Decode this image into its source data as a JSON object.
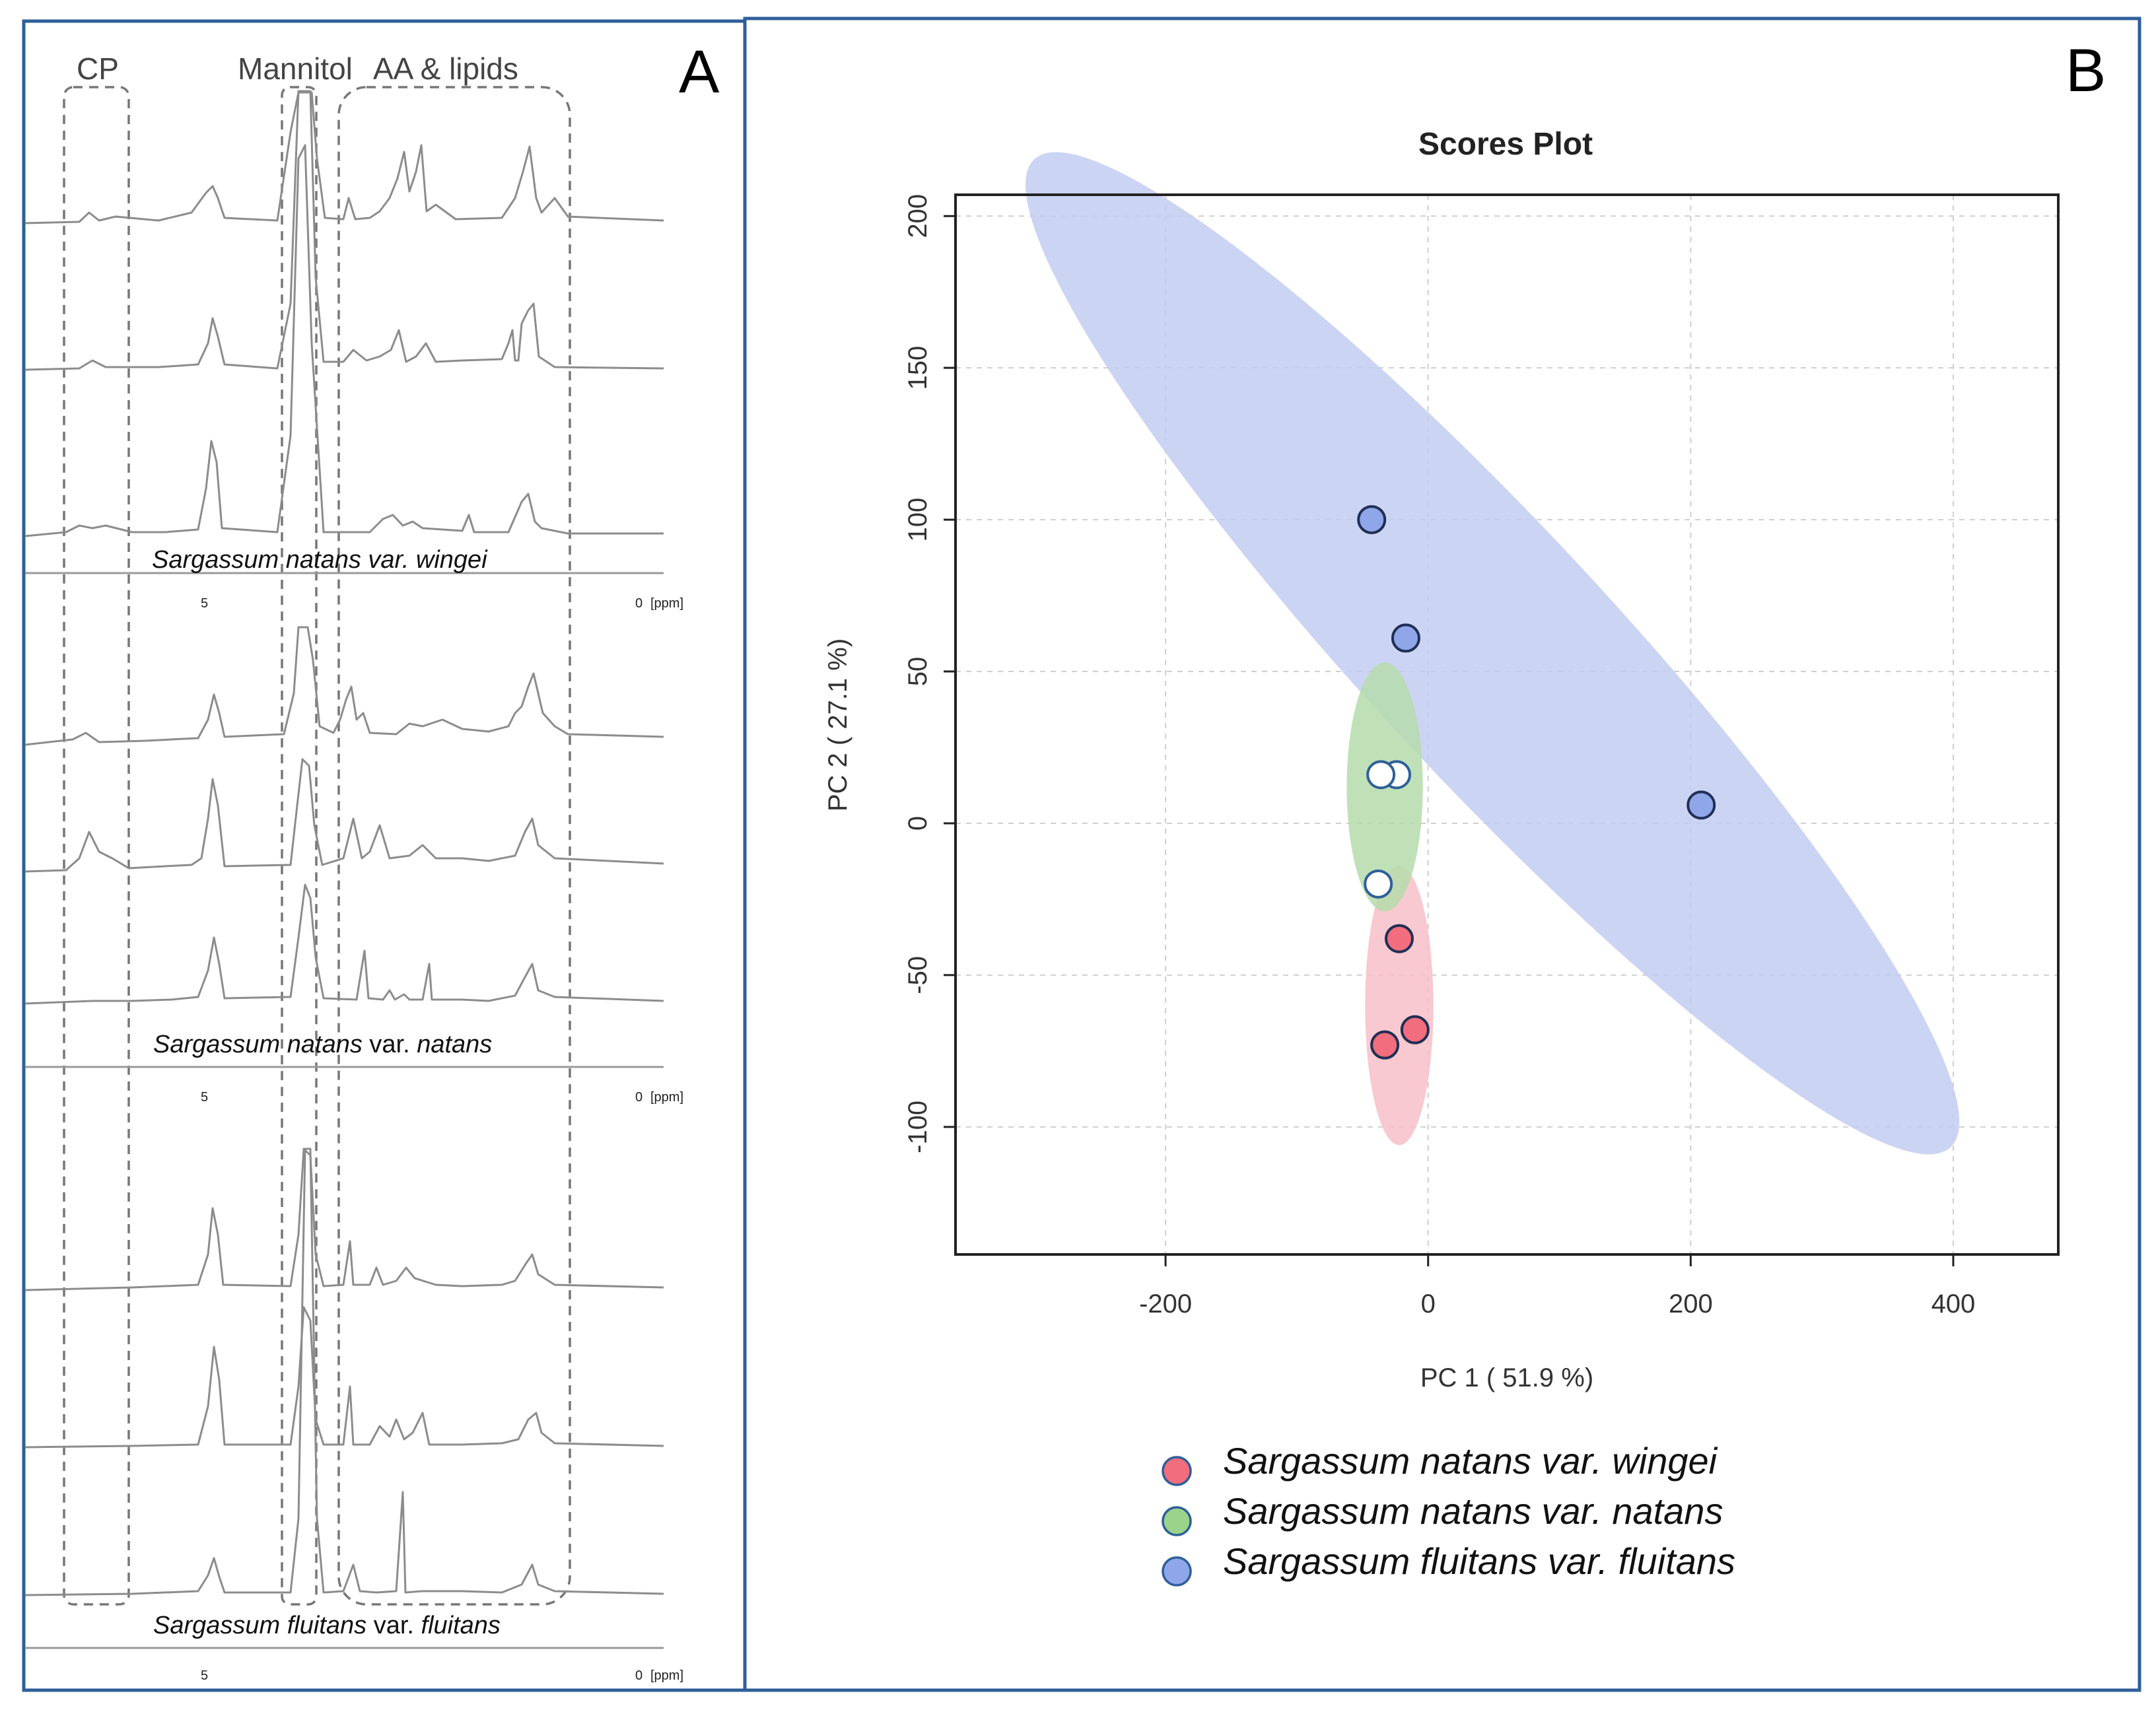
{
  "panel_a": {
    "letter": "A",
    "region_labels": [
      "CP",
      "Mannitol",
      "AA & lipids"
    ],
    "groups": [
      {
        "species": "Sargassum natans",
        "variety_word": " var. ",
        "variety": "wingei",
        "variety_style": "italic",
        "ticks": {
          "five": "5",
          "zero": "0",
          "unit": "[ppm]"
        }
      },
      {
        "species": "Sargassum natans",
        "variety_word": " var. ",
        "variety": "natans",
        "variety_style": "italic",
        "ticks": {
          "five": "5",
          "zero": "0",
          "unit": "[ppm]"
        }
      },
      {
        "species": "Sargassum fluitans",
        "variety_word": " var. ",
        "variety": "fluitans",
        "variety_style": "italic",
        "ticks": {
          "five": "5",
          "zero": "0",
          "unit": "[ppm]"
        }
      }
    ]
  },
  "panel_b": {
    "letter": "B"
  },
  "chart_data": {
    "type": "scatter",
    "title": "Scores Plot",
    "xlabel": "PC 1 ( 51.9 %)",
    "ylabel": "PC 2 ( 27.1 %)",
    "xlim": [
      -360,
      480
    ],
    "ylim": [
      -142,
      207
    ],
    "xticks": [
      -200,
      0,
      200,
      400
    ],
    "yticks": [
      -100,
      -50,
      0,
      50,
      100,
      150,
      200
    ],
    "grid": true,
    "legend_position": "bottom",
    "series": [
      {
        "name": "Sargassum natans var. wingei",
        "color": "#f26d7d",
        "ellipse_color": "#f7c0c8",
        "points": [
          {
            "x": -22,
            "y": -38
          },
          {
            "x": -10,
            "y": -68
          },
          {
            "x": -33,
            "y": -73
          }
        ],
        "ellipse": {
          "cx": -22,
          "cy": -60,
          "rx": 26,
          "ry": 46,
          "angle": 0
        }
      },
      {
        "name": "Sargassum natans var. natans",
        "color": "#ffffff",
        "stroke": "#2f5f9a",
        "ellipse_color": "#b5dcab",
        "points": [
          {
            "x": -24,
            "y": 16
          },
          {
            "x": -36,
            "y": 16
          },
          {
            "x": -38,
            "y": -20
          }
        ],
        "ellipse": {
          "cx": -33,
          "cy": 12,
          "rx": 29,
          "ry": 41,
          "angle": 0
        }
      },
      {
        "name": "Sargassum fluitans var. fluitans",
        "color": "#8fa7e8",
        "ellipse_color": "#c3cdf1",
        "points": [
          {
            "x": -43,
            "y": 100
          },
          {
            "x": -17,
            "y": 61
          },
          {
            "x": 208,
            "y": 6
          }
        ],
        "ellipse": {
          "cx": 49,
          "cy": 56,
          "rx": 385,
          "ry": 44,
          "angle": -25
        }
      }
    ]
  }
}
